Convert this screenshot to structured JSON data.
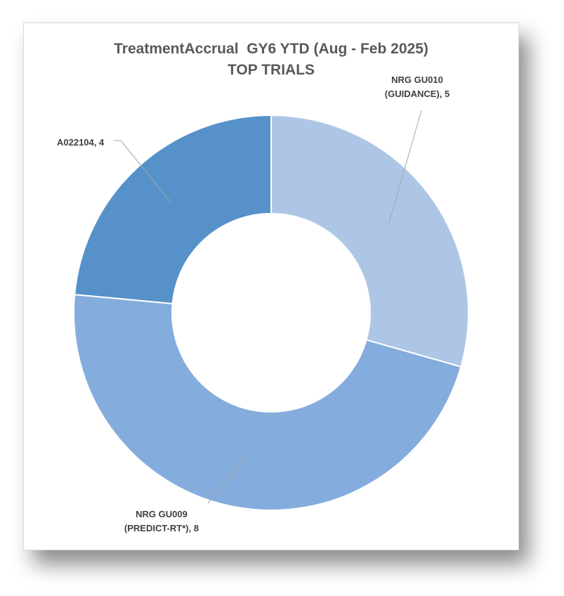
{
  "chart_data": {
    "type": "pie",
    "donut": true,
    "title": "TreatmentAccrual  GY6 YTD (Aug - Feb 2025)",
    "subtitle": "TOP TRIALS",
    "slices": [
      {
        "label_lines": [
          "NRG GU010",
          "(GUIDANCE), 5"
        ],
        "value": 5,
        "color": "#aec6e6"
      },
      {
        "label_lines": [
          "NRG GU009",
          "(PREDICT-RT*), 8"
        ],
        "value": 8,
        "color": "#84acdc"
      },
      {
        "label_lines": [
          "A022104, 4"
        ],
        "value": 4,
        "color": "#5691c9"
      }
    ]
  }
}
